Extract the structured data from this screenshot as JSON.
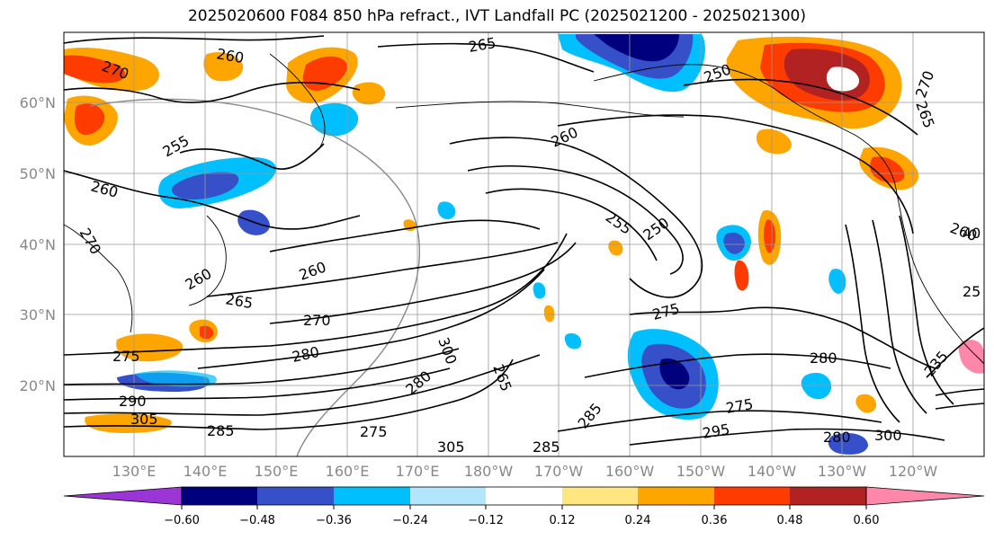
{
  "title": "2025020600 F084 850 hPa refract., IVT Landfall PC (2025021200 - 2025021300)",
  "map": {
    "lat_labels": [
      "60°N",
      "50°N",
      "40°N",
      "30°N",
      "20°N"
    ],
    "lon_labels": [
      "130°E",
      "140°E",
      "150°E",
      "160°E",
      "170°E",
      "180°W",
      "170°W",
      "160°W",
      "150°W",
      "140°W",
      "130°W",
      "120°W"
    ],
    "contour_labels": [
      "270",
      "265",
      "250",
      "260",
      "255",
      "260",
      "260",
      "255",
      "250",
      "265",
      "260",
      "275",
      "270",
      "280",
      "275",
      "290",
      "305",
      "285",
      "275",
      "280",
      "285",
      "295",
      "280",
      "275",
      "235",
      "265",
      "270",
      "300",
      "280",
      "300",
      "305",
      "285",
      "265",
      "270",
      "260",
      "25",
      "260",
      "40"
    ],
    "colors": {
      "coastline": "#000000",
      "contour": "#000000",
      "grid": "#999999",
      "great_circle": "#888888"
    }
  },
  "colorbar": {
    "ticks": [
      "−0.60",
      "−0.48",
      "−0.36",
      "−0.24",
      "−0.12",
      "0.12",
      "0.24",
      "0.36",
      "0.48",
      "0.60"
    ],
    "colors": [
      "#9b35d6",
      "#00007f",
      "#3550c8",
      "#00bfff",
      "#b3e5fc",
      "#ffffff",
      "#ffe680",
      "#ffa500",
      "#ff3c00",
      "#b22222",
      "#ff88aa"
    ]
  }
}
